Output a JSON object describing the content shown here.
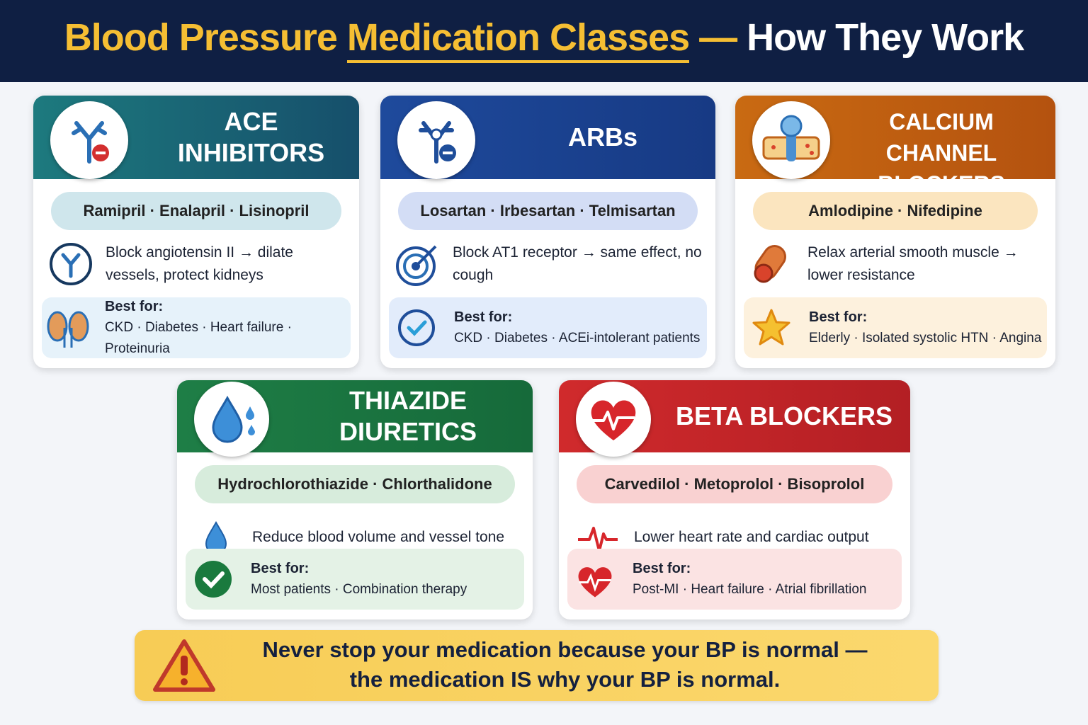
{
  "header": {
    "title_part1": "Blood Pressure",
    "title_part2": "Medication Classes",
    "title_part3": "—",
    "title_part4": "How They Work"
  },
  "cards": [
    {
      "title_lines": [
        "ACE",
        "INHIBITORS"
      ],
      "drugs": "Ramipril · Enalapril · Lisinopril",
      "mechanism": "Block angiotensin II → dilate vessels, protect kidneys",
      "best_for_label": "Best for:",
      "best_for": "CKD · Diabetes · Heart failure · Proteinuria"
    },
    {
      "title_lines": [
        "ARBs"
      ],
      "drugs": "Losartan · Irbesartan · Telmisartan",
      "mechanism": "Block AT1 receptor → same effect, no cough",
      "best_for_label": "Best for:",
      "best_for": "CKD · Diabetes · ACEi-intolerant patients"
    },
    {
      "title_lines": [
        "CALCIUM CHANNEL",
        "BLOCKERS"
      ],
      "drugs": "Amlodipine · Nifedipine",
      "mechanism": "Relax arterial smooth muscle → lower resistance",
      "best_for_label": "Best for:",
      "best_for": "Elderly · Isolated systolic HTN · Angina"
    },
    {
      "title_lines": [
        "THIAZIDE",
        "DIURETICS"
      ],
      "drugs": "Hydrochlorothiazide · Chlorthalidone",
      "mechanism": "Reduce blood volume and vessel tone",
      "best_for_label": "Best for:",
      "best_for": "Most patients · Combination therapy"
    },
    {
      "title_lines": [
        "BETA BLOCKERS"
      ],
      "drugs": "Carvedilol · Metoprolol · Bisoprolol",
      "mechanism": "Lower heart rate and cardiac output",
      "best_for_label": "Best for:",
      "best_for": "Post-MI · Heart failure · Atrial fibrillation"
    }
  ],
  "warning": {
    "lines": [
      "Never stop your medication because your BP is normal —",
      "the medication IS why your BP is normal."
    ]
  }
}
